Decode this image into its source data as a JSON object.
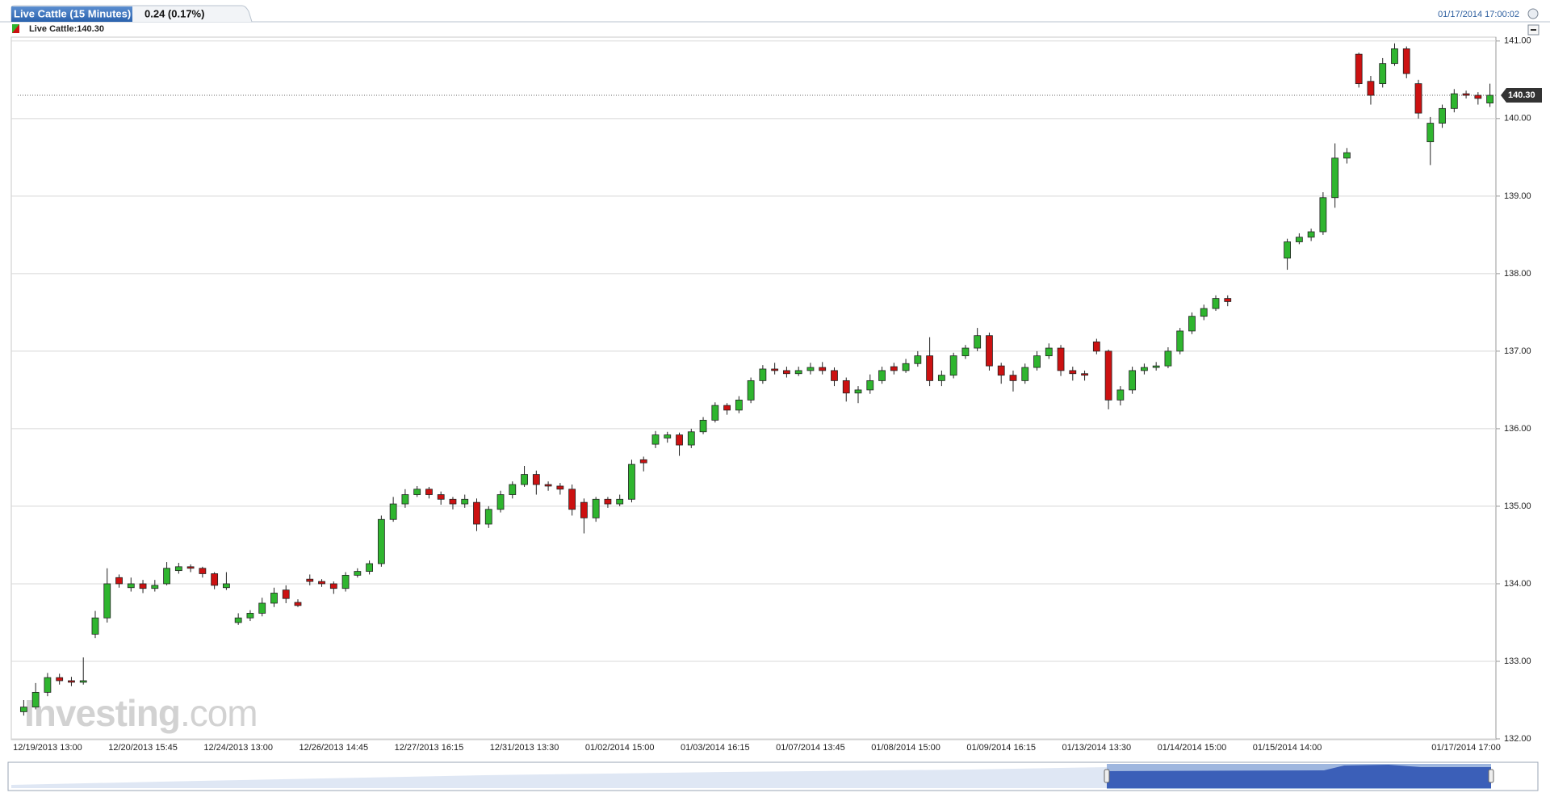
{
  "chart_data": {
    "type": "candlestick",
    "tab_title": "Live Cattle (15 Minutes)",
    "change": "0.24 (0.17%)",
    "timestamp": "01/17/2014 17:00:02",
    "legend": "Live Cattle:140.30",
    "watermark": {
      "brand": "Investing",
      "suffix": ".com"
    },
    "up_color": "#2fb52f",
    "down_color": "#cc1111",
    "grid": true,
    "ylim": [
      132,
      141.05
    ],
    "yticks": [
      {
        "value": 132,
        "label": "132.00"
      },
      {
        "value": 133,
        "label": "133.00"
      },
      {
        "value": 134,
        "label": "134.00"
      },
      {
        "value": 135,
        "label": "135.00"
      },
      {
        "value": 136,
        "label": "136.00"
      },
      {
        "value": 137,
        "label": "137.00"
      },
      {
        "value": 138,
        "label": "138.00"
      },
      {
        "value": 139,
        "label": "139.00"
      },
      {
        "value": 140,
        "label": "140.00"
      },
      {
        "value": 141,
        "label": "141.00"
      }
    ],
    "last_price": {
      "value": 140.3,
      "label": "140.30"
    },
    "categories": [
      null,
      null,
      "12/19/2013 13:00",
      null,
      null,
      null,
      null,
      null,
      null,
      null,
      "12/20/2013 15:45",
      null,
      null,
      null,
      null,
      null,
      null,
      null,
      "12/24/2013 13:00",
      null,
      null,
      null,
      null,
      null,
      null,
      null,
      "12/26/2013 14:45",
      null,
      null,
      null,
      null,
      null,
      null,
      null,
      "12/27/2013 16:15",
      null,
      null,
      null,
      null,
      null,
      null,
      null,
      "12/31/2013 13:30",
      null,
      null,
      null,
      null,
      null,
      null,
      null,
      "01/02/2014 15:00",
      null,
      null,
      null,
      null,
      null,
      null,
      null,
      "01/03/2014 16:15",
      null,
      null,
      null,
      null,
      null,
      null,
      null,
      "01/07/2014 13:45",
      null,
      null,
      null,
      null,
      null,
      null,
      null,
      "01/08/2014 15:00",
      null,
      null,
      null,
      null,
      null,
      null,
      null,
      "01/09/2014 16:15",
      null,
      null,
      null,
      null,
      null,
      null,
      null,
      "01/13/2014 13:30",
      null,
      null,
      null,
      null,
      null,
      null,
      null,
      "01/14/2014 15:00",
      null,
      null,
      null,
      null,
      null,
      null,
      null,
      "01/15/2014 14:00",
      null,
      null,
      null,
      null,
      null,
      null,
      null,
      null,
      null,
      null,
      null,
      null,
      null,
      null,
      "01/17/2014 17:00",
      null,
      null
    ],
    "open": [
      132.35,
      132.41,
      132.6,
      132.79,
      132.75,
      132.73,
      133.35,
      133.56,
      134.08,
      133.95,
      134,
      133.94,
      134,
      134.17,
      134.22,
      134.2,
      134.13,
      133.95,
      133.5,
      133.56,
      133.62,
      133.75,
      133.92,
      133.76,
      134.06,
      134.03,
      134,
      133.94,
      134.11,
      134.16,
      134.26,
      134.83,
      135.03,
      135.15,
      135.22,
      135.15,
      135.09,
      135.03,
      135.05,
      134.77,
      134.96,
      135.15,
      135.28,
      135.41,
      135.28,
      135.26,
      135.22,
      135.05,
      134.85,
      135.09,
      135.03,
      135.09,
      135.6,
      135.8,
      135.88,
      135.92,
      135.79,
      135.96,
      136.11,
      136.3,
      136.24,
      136.37,
      136.62,
      136.77,
      136.75,
      136.71,
      136.75,
      136.79,
      136.75,
      136.62,
      136.46,
      136.5,
      136.62,
      136.8,
      136.75,
      136.84,
      136.94,
      136.62,
      136.69,
      136.94,
      137.04,
      137.2,
      136.81,
      136.69,
      136.62,
      136.79,
      136.94,
      137.04,
      136.75,
      136.71,
      137.12,
      137,
      136.37,
      136.5,
      136.75,
      136.79,
      136.81,
      137,
      137.26,
      137.45,
      137.55,
      137.68,
      null,
      null,
      null,
      null,
      138.2,
      138.41,
      138.47,
      138.54,
      138.98,
      139.49,
      140.83,
      140.48,
      140.45,
      140.71,
      140.9,
      140.45,
      139.7,
      139.94,
      140.13,
      140.32,
      140.3,
      140.2
    ],
    "high": [
      132.5,
      132.72,
      132.85,
      132.84,
      132.8,
      133.05,
      133.65,
      134.2,
      134.12,
      134.08,
      134.05,
      134.05,
      134.28,
      134.27,
      134.25,
      134.22,
      134.15,
      134.15,
      133.62,
      133.66,
      133.82,
      133.95,
      133.98,
      133.8,
      134.12,
      134.06,
      134.03,
      134.15,
      134.2,
      134.3,
      134.88,
      135.12,
      135.22,
      135.26,
      135.25,
      135.19,
      135.12,
      135.15,
      135.1,
      135,
      135.2,
      135.32,
      135.52,
      135.46,
      135.32,
      135.3,
      135.28,
      135.1,
      135.12,
      135.12,
      135.15,
      135.6,
      135.64,
      135.97,
      135.96,
      135.95,
      136,
      136.15,
      136.34,
      136.33,
      136.42,
      136.66,
      136.82,
      136.85,
      136.8,
      136.8,
      136.85,
      136.86,
      136.79,
      136.66,
      136.55,
      136.7,
      136.8,
      136.85,
      136.9,
      137,
      137.18,
      136.75,
      136.98,
      137.08,
      137.3,
      137.24,
      136.85,
      136.75,
      136.84,
      137,
      137.1,
      137.08,
      136.8,
      136.75,
      137.16,
      137.02,
      136.55,
      136.8,
      136.84,
      136.86,
      137.05,
      137.3,
      137.5,
      137.6,
      137.72,
      137.72,
      null,
      null,
      null,
      null,
      138.45,
      138.52,
      138.58,
      139.05,
      139.68,
      139.62,
      140.85,
      140.55,
      140.78,
      140.97,
      140.93,
      140.5,
      140.02,
      140.18,
      140.38,
      140.36,
      140.34,
      140.45
    ],
    "low": [
      132.3,
      132.38,
      132.55,
      132.7,
      132.68,
      132.7,
      133.3,
      133.5,
      133.95,
      133.9,
      133.88,
      133.9,
      133.98,
      134.13,
      134.15,
      134.08,
      133.93,
      133.92,
      133.47,
      133.52,
      133.58,
      133.7,
      133.75,
      133.7,
      133.98,
      133.96,
      133.87,
      133.9,
      134.08,
      134.12,
      134.22,
      134.8,
      134.98,
      135.12,
      135.1,
      135.02,
      134.96,
      134.98,
      134.68,
      134.72,
      134.92,
      135.1,
      135.25,
      135.15,
      135.2,
      135.15,
      134.88,
      134.65,
      134.8,
      134.98,
      135,
      135.05,
      135.45,
      135.75,
      135.82,
      135.65,
      135.75,
      135.93,
      136.08,
      136.18,
      136.2,
      136.33,
      136.58,
      136.7,
      136.66,
      136.68,
      136.7,
      136.7,
      136.55,
      136.35,
      136.33,
      136.45,
      136.58,
      136.7,
      136.72,
      136.8,
      136.55,
      136.55,
      136.65,
      136.9,
      137,
      136.75,
      136.58,
      136.48,
      136.58,
      136.75,
      136.9,
      136.68,
      136.62,
      136.62,
      136.96,
      136.25,
      136.3,
      136.45,
      136.7,
      136.75,
      136.78,
      136.96,
      137.22,
      137.4,
      137.52,
      137.58,
      null,
      null,
      null,
      null,
      138.05,
      138.38,
      138.42,
      138.5,
      138.85,
      139.42,
      140.4,
      140.18,
      140.4,
      140.68,
      140.52,
      140,
      139.4,
      139.88,
      140.08,
      140.26,
      140.18,
      140.15
    ],
    "close": [
      132.41,
      132.6,
      132.79,
      132.75,
      132.73,
      132.75,
      133.56,
      134,
      134,
      134,
      133.94,
      133.98,
      134.2,
      134.22,
      134.2,
      134.13,
      133.98,
      134,
      133.56,
      133.62,
      133.75,
      133.88,
      133.81,
      133.72,
      134.03,
      134,
      133.94,
      134.11,
      134.16,
      134.26,
      134.83,
      135.03,
      135.15,
      135.22,
      135.15,
      135.09,
      135.03,
      135.09,
      134.77,
      134.96,
      135.15,
      135.28,
      135.41,
      135.28,
      135.26,
      135.22,
      134.96,
      134.85,
      135.09,
      135.03,
      135.09,
      135.54,
      135.56,
      135.92,
      135.92,
      135.79,
      135.96,
      136.11,
      136.3,
      136.24,
      136.37,
      136.62,
      136.77,
      136.75,
      136.71,
      136.75,
      136.79,
      136.75,
      136.62,
      136.46,
      136.5,
      136.62,
      136.75,
      136.75,
      136.84,
      136.94,
      136.62,
      136.69,
      136.94,
      137.04,
      137.2,
      136.81,
      136.69,
      136.62,
      136.79,
      136.94,
      137.04,
      136.75,
      136.71,
      136.69,
      137,
      136.37,
      136.5,
      136.75,
      136.79,
      136.81,
      137,
      137.26,
      137.45,
      137.55,
      137.68,
      137.64,
      null,
      null,
      null,
      null,
      138.41,
      138.47,
      138.54,
      138.98,
      139.49,
      139.56,
      140.45,
      140.3,
      140.71,
      140.9,
      140.58,
      140.07,
      139.94,
      140.13,
      140.32,
      140.3,
      140.26,
      140.3
    ]
  }
}
